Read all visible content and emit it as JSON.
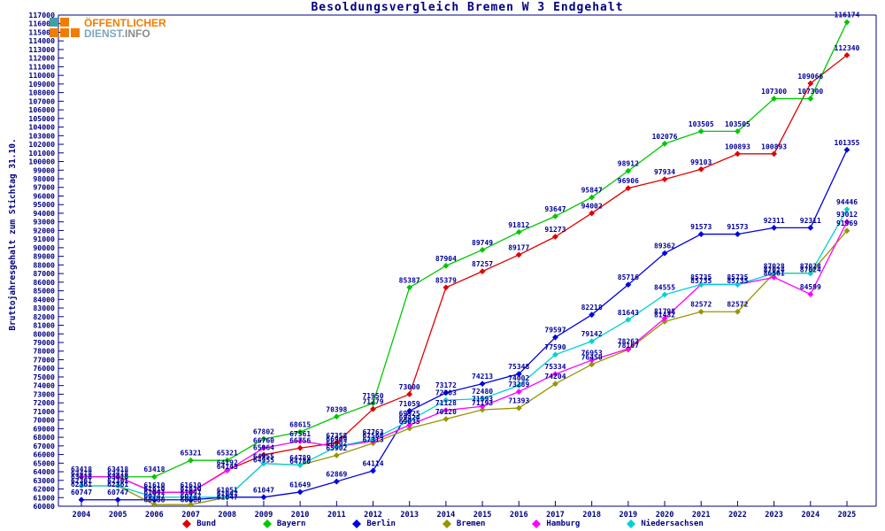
{
  "title": "Besoldungsvergleich Bremen W 3 Endgehalt",
  "y_axis_title": "Bruttojahresgehalt zum Stichtag 31.10.",
  "logo": {
    "line1": "ÖFFENTLICHER",
    "line2_a": "DIENST.",
    "line2_b": "INFO"
  },
  "colors": {
    "axis": "#000080",
    "point_label": "#000099",
    "title": "#000080",
    "logo_orange": "#f07d00",
    "logo_teal": "#3f9eaa",
    "logo_gray": "#8c8c8c"
  },
  "chart_data": {
    "type": "line",
    "title": "Besoldungsvergleich Bremen W 3 Endgehalt",
    "xlabel": "",
    "ylabel": "Bruttojahresgehalt zum Stichtag 31.10.",
    "x": [
      2004,
      2005,
      2006,
      2007,
      2008,
      2009,
      2010,
      2011,
      2012,
      2013,
      2014,
      2015,
      2016,
      2017,
      2018,
      2019,
      2020,
      2021,
      2022,
      2023,
      2024,
      2025
    ],
    "ylim": [
      60000,
      117000
    ],
    "ytick_step": 1000,
    "grid": false,
    "legend_position": "bottom",
    "point_labels": true,
    "series": [
      {
        "name": "Bund",
        "color": "#e10000",
        "values": [
          63418,
          63418,
          61610,
          61610,
          64192,
          65964,
          66756,
          67358,
          71279,
          73000,
          85379,
          87257,
          89177,
          91273,
          94002,
          96906,
          97934,
          99103,
          100893,
          100893,
          109066,
          112340
        ]
      },
      {
        "name": "Bayern",
        "color": "#00c800",
        "values": [
          63418,
          63418,
          63418,
          65321,
          65321,
          67802,
          68615,
          70398,
          71950,
          85387,
          87904,
          89749,
          91812,
          93647,
          95847,
          98912,
          102076,
          103505,
          103505,
          107300,
          107300,
          116174
        ]
      },
      {
        "name": "Berlin",
        "color": "#0000e1",
        "values": [
          60747,
          60747,
          60747,
          60747,
          61047,
          61047,
          61649,
          62869,
          64114,
          71059,
          73172,
          74213,
          75348,
          79597,
          82218,
          85716,
          89362,
          91573,
          91573,
          92311,
          92311,
          101355
        ]
      },
      {
        "name": "Bremen",
        "color": "#969600",
        "values": [
          62361,
          62361,
          60188,
          60188,
          61047,
          64955,
          64780,
          65902,
          67313,
          69035,
          70120,
          71193,
          71393,
          74204,
          76450,
          78167,
          81432,
          82572,
          82572,
          87028,
          87028,
          91969
        ]
      },
      {
        "name": "Hamburg",
        "color": "#ff00ff",
        "values": [
          63418,
          63418,
          61610,
          61610,
          64143,
          66760,
          67561,
          66902,
          67568,
          69424,
          71128,
          71593,
          73289,
          75334,
          76953,
          78263,
          81798,
          85735,
          85735,
          86561,
          84599,
          93012
        ]
      },
      {
        "name": "Niedersachsen",
        "color": "#00d2d2",
        "values": [
          62361,
          62361,
          61047,
          61047,
          61051,
          64955,
          64789,
          66909,
          67763,
          69925,
          72303,
          72480,
          74002,
          77590,
          79142,
          81643,
          84555,
          85735,
          85735,
          87024,
          87024,
          94446
        ]
      }
    ]
  }
}
